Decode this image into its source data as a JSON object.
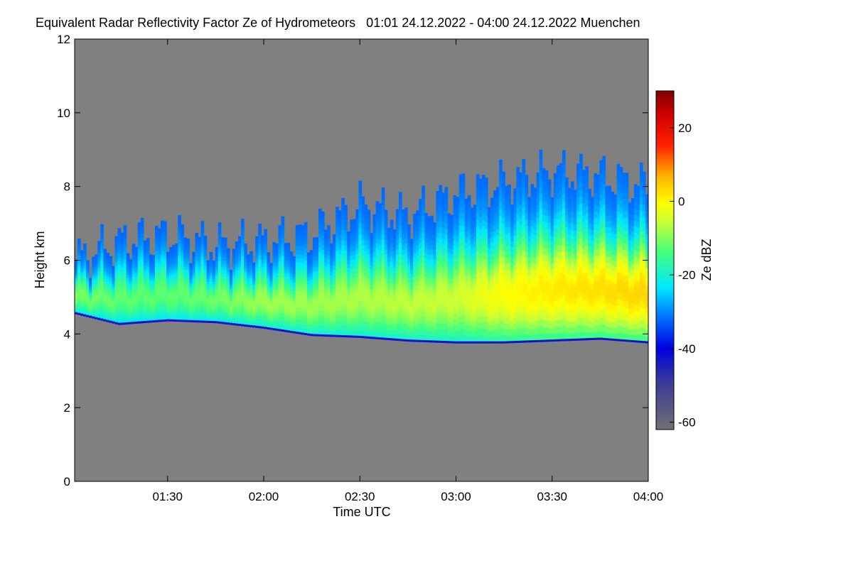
{
  "chart_data": {
    "type": "heatmap",
    "title": "Equivalent Radar Reflectivity Factor Ze of Hydrometeors   01:01 24.12.2022 - 04:00 24.12.2022 Muenchen",
    "xlabel": "Time UTC",
    "ylabel": "Height km",
    "x_range_minutes": [
      1.0167,
      4.0
    ],
    "x_ticks": [
      {
        "value": 1.5,
        "label": "01:30"
      },
      {
        "value": 2.0,
        "label": "02:00"
      },
      {
        "value": 2.5,
        "label": "02:30"
      },
      {
        "value": 3.0,
        "label": "03:00"
      },
      {
        "value": 3.5,
        "label": "03:30"
      },
      {
        "value": 4.0,
        "label": "04:00"
      }
    ],
    "ylim": [
      0,
      12
    ],
    "y_ticks": [
      0,
      2,
      4,
      6,
      8,
      10,
      12
    ],
    "colorbar": {
      "label": "Ze dBZ",
      "range": [
        -62,
        30
      ],
      "ticks": [
        -60,
        -40,
        -20,
        0,
        20
      ]
    },
    "background_color": "#808080",
    "cloud_layer": {
      "time": [
        1.0167,
        1.25,
        1.5,
        1.75,
        2.0,
        2.25,
        2.5,
        2.75,
        3.0,
        3.25,
        3.5,
        3.75,
        4.0
      ],
      "base_km": [
        4.6,
        4.3,
        4.4,
        4.35,
        4.2,
        4.0,
        3.95,
        3.85,
        3.8,
        3.8,
        3.85,
        3.9,
        3.8
      ],
      "top_km": [
        6.0,
        6.5,
        6.7,
        6.4,
        6.5,
        6.7,
        7.5,
        7.2,
        7.8,
        8.1,
        8.4,
        8.3,
        8.0
      ],
      "core_ze_dbz": [
        -10,
        -12,
        -12,
        -11,
        -8,
        -8,
        -7,
        -6,
        -5,
        0,
        2,
        3,
        4
      ]
    }
  }
}
